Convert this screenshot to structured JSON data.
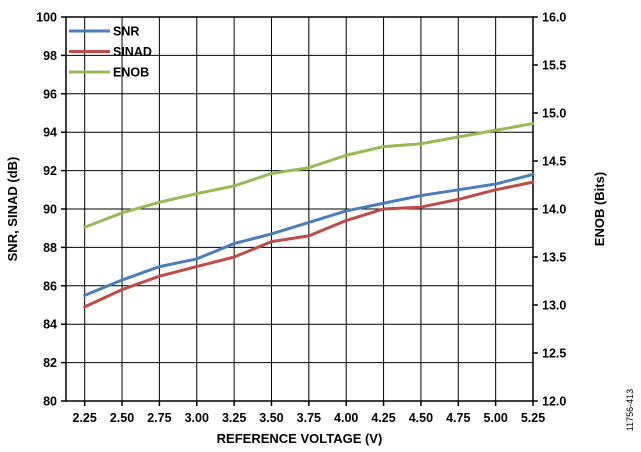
{
  "chart_data": {
    "type": "line",
    "x": [
      2.25,
      2.5,
      2.75,
      3.0,
      3.25,
      3.5,
      3.75,
      4.0,
      4.25,
      4.5,
      4.75,
      5.0,
      5.25
    ],
    "x_tick_labels": [
      "2.25",
      "2.50",
      "2.75",
      "3.00",
      "3.25",
      "3.50",
      "3.75",
      "4.00",
      "4.25",
      "4.50",
      "4.75",
      "5.00",
      "5.25"
    ],
    "xlabel": "REFERENCE VOLTAGE (V)",
    "ylabel": "SNR, SINAD (dB)",
    "ylim": [
      80,
      100
    ],
    "y_tick_labels": [
      "80",
      "82",
      "84",
      "86",
      "88",
      "90",
      "92",
      "94",
      "96",
      "98",
      "100"
    ],
    "y2label": "ENOB (Bits)",
    "y2lim": [
      12.0,
      16.0
    ],
    "y2_tick_labels": [
      "12.0",
      "12.5",
      "13.0",
      "13.5",
      "14.0",
      "14.5",
      "15.0",
      "15.5",
      "16.0"
    ],
    "grid": true,
    "legend_position": "top-left",
    "figure_id": "11756-413",
    "series": [
      {
        "name": "SNR",
        "axis": "left",
        "color": "#4a7ebb",
        "values": [
          85.5,
          86.3,
          87.0,
          87.4,
          88.2,
          88.7,
          89.3,
          89.9,
          90.3,
          90.7,
          91.0,
          91.3,
          91.8
        ]
      },
      {
        "name": "SINAD",
        "axis": "left",
        "color": "#be4b48",
        "values": [
          84.9,
          85.8,
          86.5,
          87.0,
          87.5,
          88.3,
          88.6,
          89.4,
          90.0,
          90.1,
          90.5,
          91.0,
          91.4
        ]
      },
      {
        "name": "ENOB",
        "axis": "right",
        "color": "#98b954",
        "values": [
          13.81,
          13.96,
          14.07,
          14.16,
          14.24,
          14.37,
          14.43,
          14.56,
          14.65,
          14.68,
          14.75,
          14.82,
          14.89
        ]
      }
    ]
  }
}
